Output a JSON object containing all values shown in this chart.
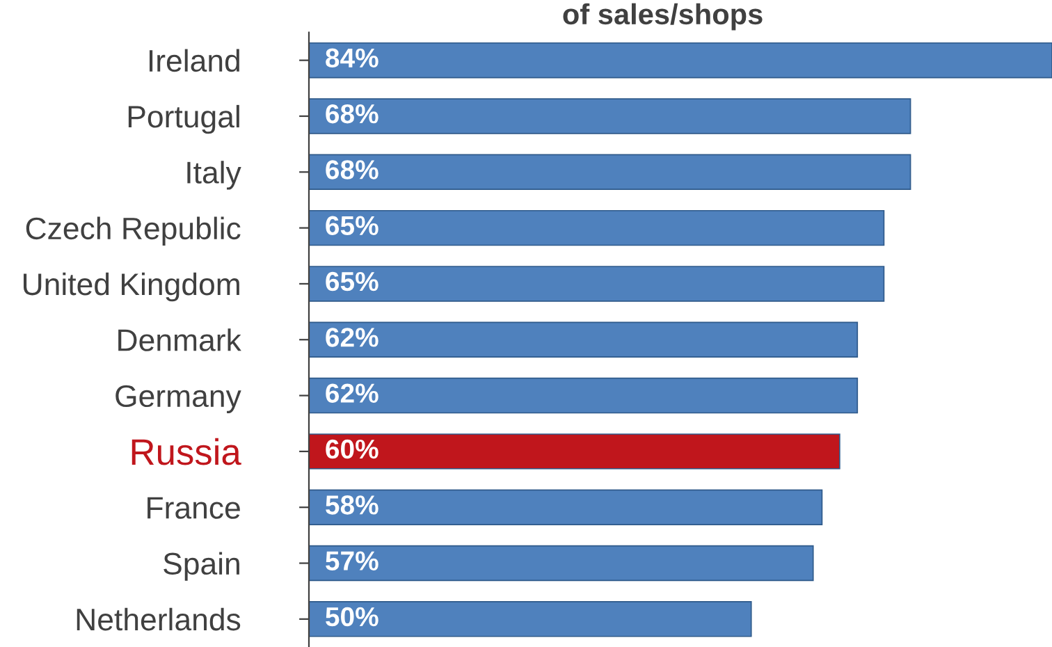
{
  "chart_data": {
    "type": "bar",
    "orientation": "horizontal",
    "title": "of sales/shops",
    "categories": [
      "Ireland",
      "Portugal",
      "Italy",
      "Czech Republic",
      "United Kingdom",
      "Denmark",
      "Germany",
      "Russia",
      "France",
      "Spain",
      "Netherlands"
    ],
    "values": [
      84,
      68,
      68,
      65,
      65,
      62,
      62,
      60,
      58,
      57,
      50
    ],
    "colors": [
      "#4f81bd",
      "#4f81bd",
      "#4f81bd",
      "#4f81bd",
      "#4f81bd",
      "#4f81bd",
      "#4f81bd",
      "#c0161c",
      "#4f81bd",
      "#4f81bd",
      "#4f81bd"
    ],
    "value_labels": [
      "84%",
      "68%",
      "68%",
      "65%",
      "65%",
      "62%",
      "62%",
      "60%",
      "58%",
      "57%",
      "50%"
    ],
    "xlim": [
      0,
      84
    ],
    "tick_labels": "y",
    "grid": false,
    "legend": false
  }
}
